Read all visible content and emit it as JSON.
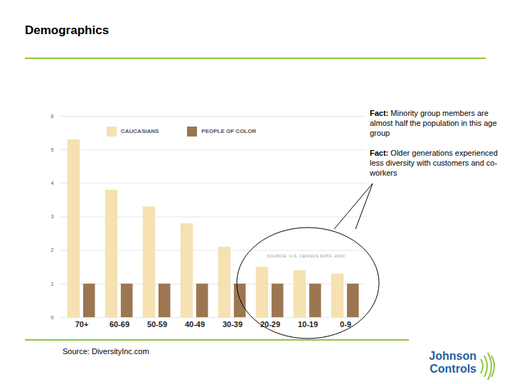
{
  "chart_data": {
    "type": "bar",
    "title": "Demographics",
    "categories": [
      "70+",
      "60-69",
      "50-59",
      "40-49",
      "30-39",
      "20-29",
      "10-19",
      "0-9"
    ],
    "series": [
      {
        "name": "CAUCASIANS",
        "color": "#f5e1b1",
        "values": [
          5.3,
          3.8,
          3.3,
          2.8,
          2.1,
          1.5,
          1.4,
          1.3
        ]
      },
      {
        "name": "PEOPLE OF COLOR",
        "color": "#9c7651",
        "values": [
          1.0,
          1.0,
          1.0,
          1.0,
          1.0,
          1.0,
          1.0,
          1.0
        ]
      }
    ],
    "ylim": [
      0,
      6
    ],
    "yticks": [
      0,
      1,
      2,
      3,
      4,
      5,
      6
    ],
    "grid": true,
    "legend": "top-left",
    "annotations": [
      "Fact: Minority group members are almost half the population in this age group",
      "Fact:  Older generations experienced less diversity with customers and co-workers"
    ],
    "source": "SOURCE: U.S. CENSUS DATA, 2000",
    "caption": "Source: DiversityInc.com",
    "logo": "Johnson Controls"
  }
}
